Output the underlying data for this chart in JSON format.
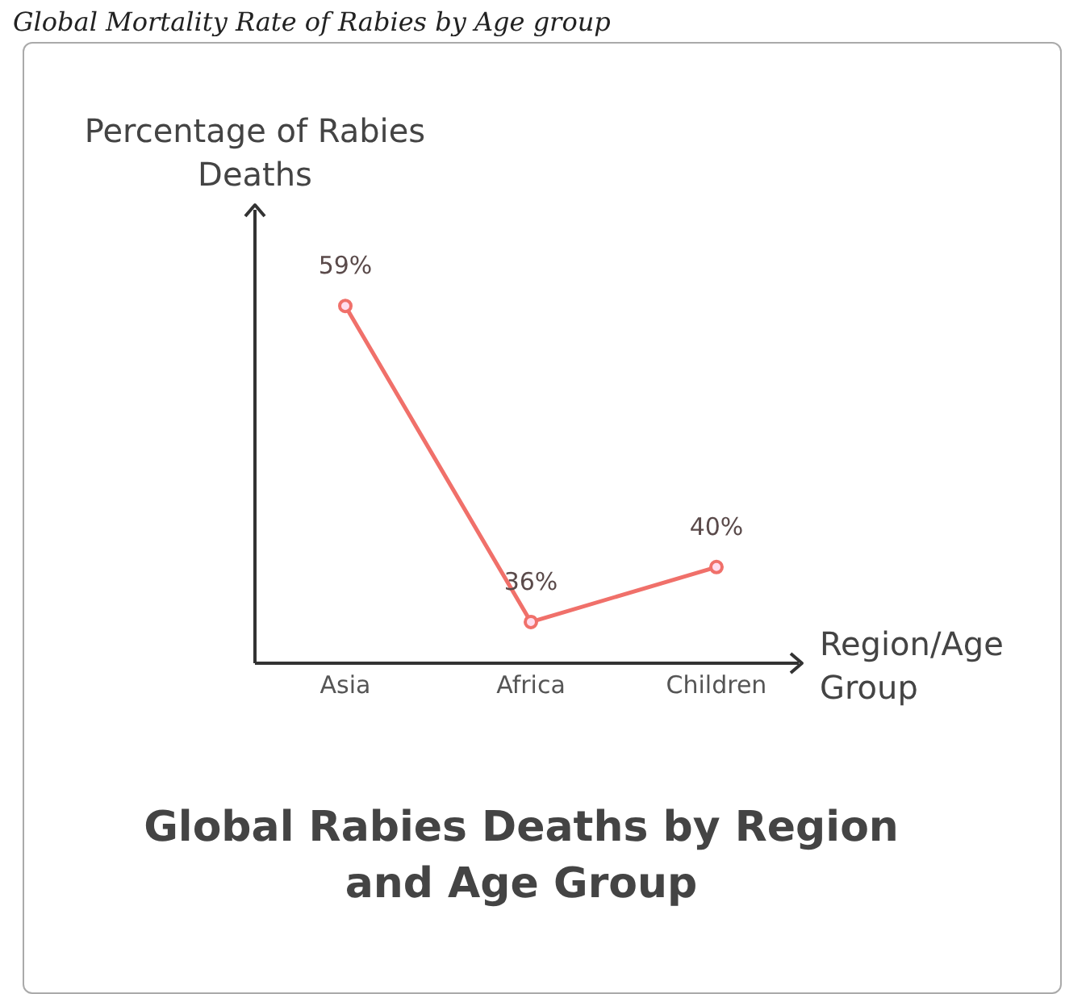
{
  "chart_data": {
    "type": "line",
    "title": "Global Rabies Deaths by Region and Age Group",
    "annotations": [
      "Global Mortality Rate of Rabies by Age group"
    ],
    "xlabel": "Region/Age Group",
    "ylabel": "Percentage of Rabies Deaths",
    "categories": [
      "Asia",
      "Africa",
      "Children"
    ],
    "series": [
      {
        "color": "#f0706a",
        "values": [
          59,
          36,
          40
        ],
        "value_labels": [
          "59%",
          "36%",
          "40%"
        ]
      }
    ],
    "ylim": [
      33,
      66
    ],
    "tick_labels": "x",
    "grid": false,
    "marker": "circle",
    "line_style": "solid"
  }
}
